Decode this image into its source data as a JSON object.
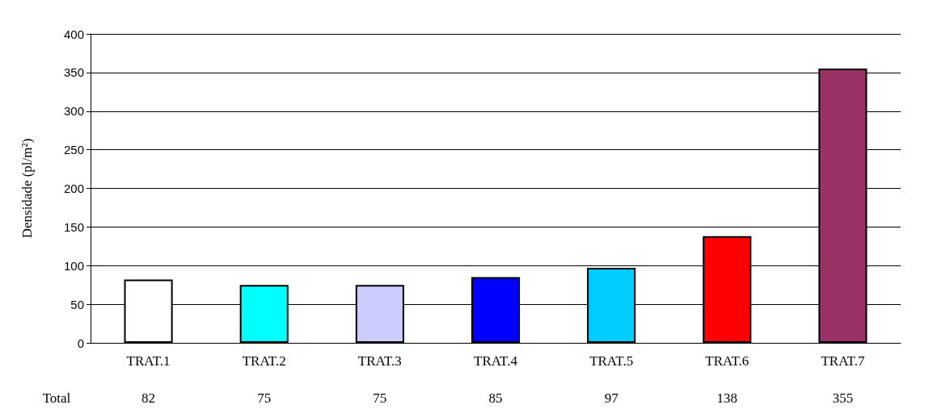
{
  "chart_data": {
    "type": "bar",
    "ylabel": "Densidade (pl/m²)",
    "categories": [
      "TRAT.1",
      "TRAT.2",
      "TRAT.3",
      "TRAT.4",
      "TRAT.5",
      "TRAT.6",
      "TRAT.7"
    ],
    "values": [
      82,
      75,
      75,
      85,
      97,
      138,
      355
    ],
    "colors": [
      "#ffffff",
      "#00ffff",
      "#ccccff",
      "#0000ff",
      "#00ccff",
      "#ff0000",
      "#993366"
    ],
    "ylim": [
      0,
      400
    ],
    "yticks": [
      0,
      50,
      100,
      150,
      200,
      250,
      300,
      350,
      400
    ],
    "grid": "y",
    "data_labels": true,
    "annotations": [
      "Total"
    ]
  }
}
